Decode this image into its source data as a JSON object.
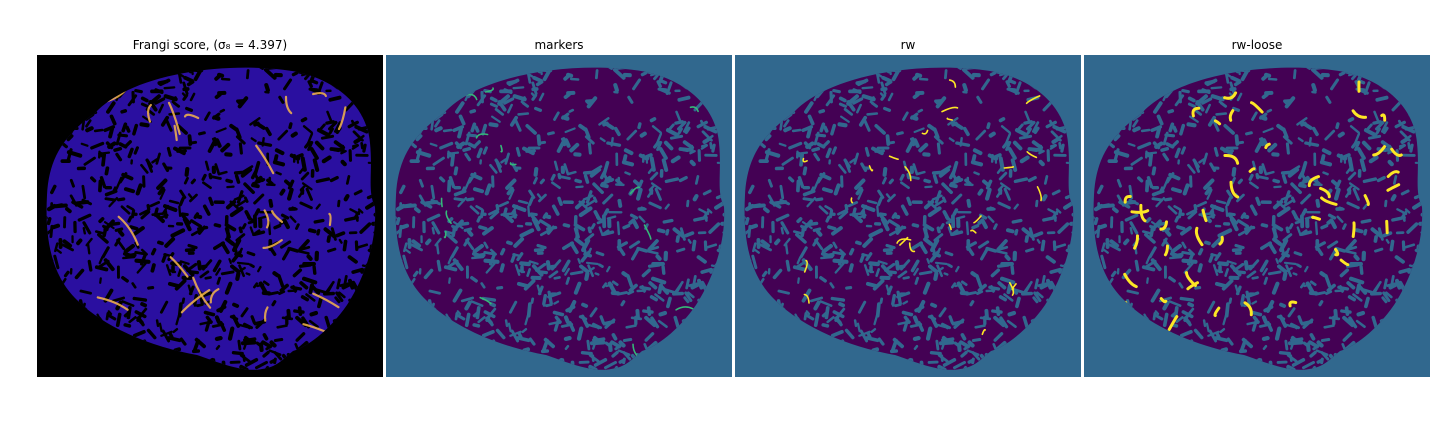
{
  "panels": [
    {
      "title": "Frangi score, (σ₈ = 4.397)",
      "background": "#000000",
      "mask": "#2a0fa0",
      "cell": "#000000",
      "highlight": "#f6b54a"
    },
    {
      "title": "markers",
      "background": "#31688e",
      "mask": "#440154",
      "cell": "#31688e",
      "highlight": "#35b779"
    },
    {
      "title": "rw",
      "background": "#31688e",
      "mask": "#440154",
      "cell": "#31688e",
      "highlight": "#fde725"
    },
    {
      "title": "rw-loose",
      "background": "#31688e",
      "mask": "#440154",
      "cell": "#31688e",
      "highlight": "#fde725"
    }
  ]
}
